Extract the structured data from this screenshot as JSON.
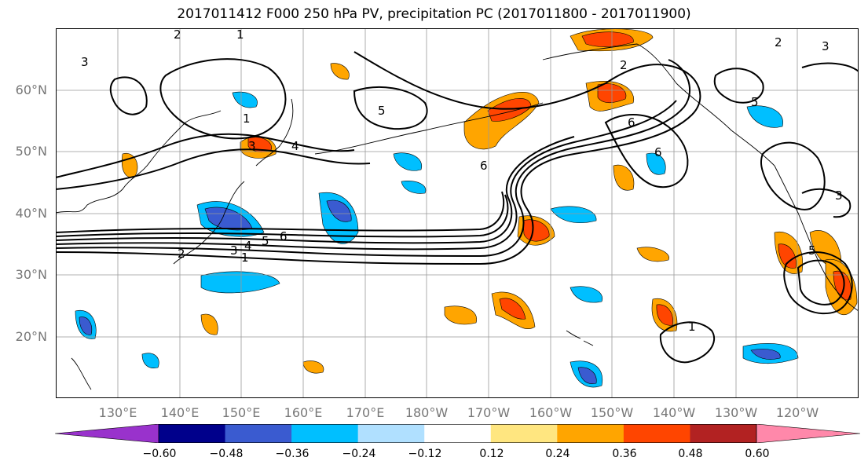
{
  "title": "2017011412 F000 250 hPa PV, precipitation PC (2017011800 - 2017011900)",
  "map": {
    "lat_ticks": [
      {
        "label": "60°N",
        "value": 60
      },
      {
        "label": "50°N",
        "value": 50
      },
      {
        "label": "40°N",
        "value": 40
      },
      {
        "label": "30°N",
        "value": 30
      },
      {
        "label": "20°N",
        "value": 20
      }
    ],
    "lon_ticks": [
      {
        "label": "130°E",
        "value": 130
      },
      {
        "label": "140°E",
        "value": 140
      },
      {
        "label": "150°E",
        "value": 150
      },
      {
        "label": "160°E",
        "value": 160
      },
      {
        "label": "170°E",
        "value": 170
      },
      {
        "label": "180°W",
        "value": 180
      },
      {
        "label": "170°W",
        "value": 190
      },
      {
        "label": "160°W",
        "value": 200
      },
      {
        "label": "150°W",
        "value": 210
      },
      {
        "label": "140°W",
        "value": 220
      },
      {
        "label": "130°W",
        "value": 230
      },
      {
        "label": "120°W",
        "value": 240
      }
    ],
    "contour_labels": [
      "1",
      "2",
      "3",
      "4",
      "5",
      "6"
    ],
    "features": [
      "coastlines",
      "pv-contours",
      "precipitation-pc-shading",
      "gridlines"
    ]
  },
  "colorbar": {
    "colors": [
      "#9932cc",
      "#00008b",
      "#3a5bd0",
      "#00bfff",
      "#b0e0ff",
      "#ffffff",
      "#ffe680",
      "#ffa500",
      "#ff4500",
      "#b22222",
      "#ff88aa"
    ],
    "ticks": [
      "−0.60",
      "−0.48",
      "−0.36",
      "−0.24",
      "−0.12",
      "0.12",
      "0.24",
      "0.36",
      "0.48",
      "0.60"
    ]
  }
}
